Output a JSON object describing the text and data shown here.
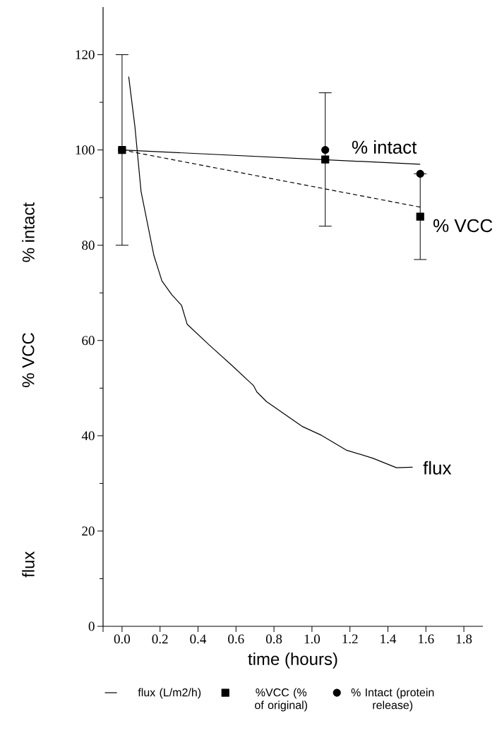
{
  "chart_data": {
    "type": "line",
    "xlabel": "time (hours)",
    "xlim": [
      -0.1,
      1.9
    ],
    "xticks": [
      {
        "value": -0.1,
        "label": null
      },
      {
        "value": 0.0,
        "label": "0.0"
      },
      {
        "value": 0.2,
        "label": "0.2"
      },
      {
        "value": 0.4,
        "label": "0.4"
      },
      {
        "value": 0.6,
        "label": "0.6"
      },
      {
        "value": 0.8,
        "label": "0.8"
      },
      {
        "value": 1.0,
        "label": "1.0"
      },
      {
        "value": 1.2,
        "label": "1.2"
      },
      {
        "value": 1.4,
        "label": "1.4"
      },
      {
        "value": 1.6,
        "label": "1.6"
      },
      {
        "value": 1.8,
        "label": "1.8"
      }
    ],
    "ylim": [
      0,
      130
    ],
    "yticks": [
      0,
      20,
      40,
      60,
      80,
      100,
      120
    ],
    "grid": false,
    "legend": "bottom",
    "series": [
      {
        "name": "flux (L/m2/h)",
        "color": "#000000",
        "marker": "none",
        "x": [
          0.035,
          0.068,
          0.1,
          0.168,
          0.21,
          0.262,
          0.313,
          0.343,
          0.455,
          0.575,
          0.693,
          0.71,
          0.76,
          0.947,
          1.05,
          1.18,
          1.32,
          1.445,
          1.53
        ],
        "values": [
          115.4,
          104.8,
          91.3,
          77.8,
          72.5,
          69.6,
          67.4,
          63.4,
          59.2,
          54.9,
          50.5,
          49.2,
          47.2,
          42.0,
          40.1,
          37.0,
          35.3,
          33.3,
          33.4
        ]
      },
      {
        "name": "%VCC (% of original)",
        "type": "scatter",
        "color": "#000000",
        "marker": "square",
        "x": [
          0.0,
          1.07,
          1.57
        ],
        "values": [
          100,
          98,
          86
        ],
        "errors": [
          20,
          14,
          9
        ]
      },
      {
        "name": "% Intact (protein release)",
        "type": "scatter",
        "color": "#000000",
        "marker": "circle",
        "x": [
          0.0,
          1.07,
          1.57
        ],
        "values": [
          100,
          100,
          95
        ]
      },
      {
        "type": "line",
        "color": "#000000",
        "marker": "none",
        "line_style": "solid",
        "x": [
          0.0,
          1.57
        ],
        "values": [
          100,
          97
        ]
      },
      {
        "type": "line",
        "color": "#000000",
        "marker": "none",
        "line_style": "dashed",
        "x": [
          0.0,
          1.57
        ],
        "values": [
          100,
          88
        ]
      }
    ],
    "annotations": [
      "% intact",
      "% VCC",
      "flux",
      "% intact",
      "% VCC",
      "flux"
    ]
  }
}
